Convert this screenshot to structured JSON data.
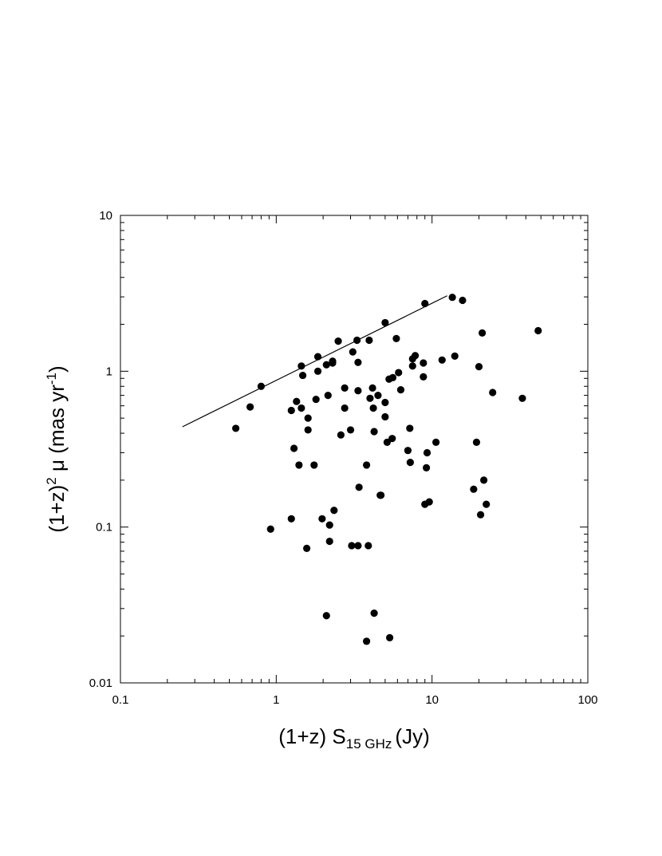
{
  "chart_data": {
    "type": "scatter",
    "title": "",
    "xlabel": {
      "prefix": "(1+z) S",
      "subscript": "15 GHz",
      "suffix": "(Jy)"
    },
    "ylabel": {
      "prefix": "(1+z)",
      "superscript": "2",
      "middle": " μ  (mas yr",
      "superscript2": "-1",
      "suffix": ")"
    },
    "xscale": "log",
    "yscale": "log",
    "xlim": [
      0.1,
      100
    ],
    "ylim": [
      0.01,
      10
    ],
    "xticks": [
      {
        "value": 0.1,
        "label": "0.1"
      },
      {
        "value": 1,
        "label": "1"
      },
      {
        "value": 10,
        "label": "10"
      },
      {
        "value": 100,
        "label": "100"
      }
    ],
    "yticks": [
      {
        "value": 0.01,
        "label": "0.01"
      },
      {
        "value": 0.1,
        "label": "0.1"
      },
      {
        "value": 1,
        "label": "1"
      },
      {
        "value": 10,
        "label": "10"
      }
    ],
    "grid": false,
    "legend": "none",
    "colors": {
      "points": "#000000",
      "line": "#000000",
      "axes": "#000000"
    },
    "line": {
      "x": [
        0.25,
        12.5
      ],
      "y": [
        0.44,
        3.05
      ]
    },
    "points": [
      {
        "x": 0.55,
        "y": 0.43
      },
      {
        "x": 0.68,
        "y": 0.59
      },
      {
        "x": 0.8,
        "y": 0.8
      },
      {
        "x": 1.25,
        "y": 0.56
      },
      {
        "x": 1.35,
        "y": 0.64
      },
      {
        "x": 1.45,
        "y": 1.08
      },
      {
        "x": 1.48,
        "y": 0.94
      },
      {
        "x": 1.45,
        "y": 0.58
      },
      {
        "x": 1.6,
        "y": 0.5
      },
      {
        "x": 1.6,
        "y": 0.42
      },
      {
        "x": 1.3,
        "y": 0.32
      },
      {
        "x": 1.4,
        "y": 0.25
      },
      {
        "x": 1.75,
        "y": 0.25
      },
      {
        "x": 1.8,
        "y": 0.66
      },
      {
        "x": 1.85,
        "y": 1.0
      },
      {
        "x": 1.85,
        "y": 1.24
      },
      {
        "x": 2.1,
        "y": 1.1
      },
      {
        "x": 2.15,
        "y": 0.7
      },
      {
        "x": 2.3,
        "y": 1.13
      },
      {
        "x": 2.3,
        "y": 1.16
      },
      {
        "x": 2.5,
        "y": 1.56
      },
      {
        "x": 2.6,
        "y": 0.39
      },
      {
        "x": 2.75,
        "y": 0.58
      },
      {
        "x": 2.75,
        "y": 0.78
      },
      {
        "x": 3.0,
        "y": 0.42
      },
      {
        "x": 3.1,
        "y": 1.33
      },
      {
        "x": 3.3,
        "y": 1.58
      },
      {
        "x": 3.35,
        "y": 1.14
      },
      {
        "x": 3.35,
        "y": 0.75
      },
      {
        "x": 3.4,
        "y": 0.18
      },
      {
        "x": 3.8,
        "y": 0.25
      },
      {
        "x": 3.95,
        "y": 1.58
      },
      {
        "x": 4.0,
        "y": 0.67
      },
      {
        "x": 4.15,
        "y": 0.78
      },
      {
        "x": 4.2,
        "y": 0.58
      },
      {
        "x": 4.25,
        "y": 0.41
      },
      {
        "x": 4.5,
        "y": 0.7
      },
      {
        "x": 4.7,
        "y": 0.16
      },
      {
        "x": 4.65,
        "y": 0.16
      },
      {
        "x": 5.0,
        "y": 2.05
      },
      {
        "x": 5.0,
        "y": 0.63
      },
      {
        "x": 5.0,
        "y": 0.51
      },
      {
        "x": 5.15,
        "y": 0.35
      },
      {
        "x": 5.3,
        "y": 0.89
      },
      {
        "x": 5.55,
        "y": 0.37
      },
      {
        "x": 5.6,
        "y": 0.91
      },
      {
        "x": 5.9,
        "y": 1.62
      },
      {
        "x": 6.1,
        "y": 0.98
      },
      {
        "x": 6.3,
        "y": 0.76
      },
      {
        "x": 7.0,
        "y": 0.31
      },
      {
        "x": 7.2,
        "y": 0.43
      },
      {
        "x": 7.25,
        "y": 0.26
      },
      {
        "x": 7.5,
        "y": 1.08
      },
      {
        "x": 7.5,
        "y": 1.2
      },
      {
        "x": 7.8,
        "y": 1.26
      },
      {
        "x": 8.8,
        "y": 1.13
      },
      {
        "x": 8.8,
        "y": 0.92
      },
      {
        "x": 9.0,
        "y": 2.72
      },
      {
        "x": 9.2,
        "y": 0.24
      },
      {
        "x": 9.3,
        "y": 0.3
      },
      {
        "x": 9.0,
        "y": 0.14
      },
      {
        "x": 9.6,
        "y": 0.145
      },
      {
        "x": 10.6,
        "y": 0.35
      },
      {
        "x": 11.6,
        "y": 1.18
      },
      {
        "x": 13.5,
        "y": 2.98
      },
      {
        "x": 14.0,
        "y": 1.25
      },
      {
        "x": 15.7,
        "y": 2.85
      },
      {
        "x": 18.5,
        "y": 0.175
      },
      {
        "x": 19.3,
        "y": 0.35
      },
      {
        "x": 20.0,
        "y": 1.07
      },
      {
        "x": 20.5,
        "y": 0.12
      },
      {
        "x": 21.0,
        "y": 1.76
      },
      {
        "x": 21.5,
        "y": 0.2
      },
      {
        "x": 22.3,
        "y": 0.14
      },
      {
        "x": 24.5,
        "y": 0.73
      },
      {
        "x": 38.0,
        "y": 0.67
      },
      {
        "x": 48.0,
        "y": 1.82
      },
      {
        "x": 0.92,
        "y": 0.097
      },
      {
        "x": 1.25,
        "y": 0.113
      },
      {
        "x": 1.57,
        "y": 0.073
      },
      {
        "x": 1.97,
        "y": 0.113
      },
      {
        "x": 2.2,
        "y": 0.103
      },
      {
        "x": 2.2,
        "y": 0.081
      },
      {
        "x": 2.35,
        "y": 0.128
      },
      {
        "x": 3.05,
        "y": 0.076
      },
      {
        "x": 3.35,
        "y": 0.076
      },
      {
        "x": 3.9,
        "y": 0.076
      },
      {
        "x": 2.1,
        "y": 0.027
      },
      {
        "x": 4.25,
        "y": 0.028
      },
      {
        "x": 3.8,
        "y": 0.0185
      },
      {
        "x": 5.35,
        "y": 0.0195
      }
    ]
  }
}
